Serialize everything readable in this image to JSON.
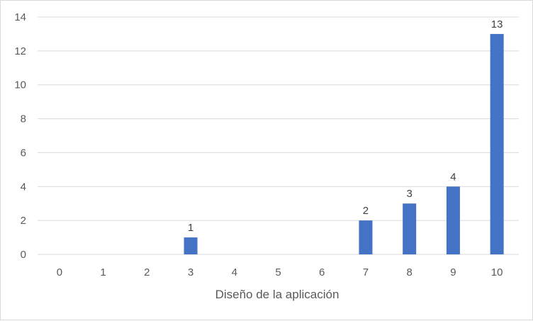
{
  "chart_data": {
    "type": "bar",
    "xlabel": "Diseño de la aplicación",
    "ylabel": "",
    "categories": [
      "0",
      "1",
      "2",
      "3",
      "4",
      "5",
      "6",
      "7",
      "8",
      "9",
      "10"
    ],
    "values": [
      0,
      0,
      0,
      1,
      0,
      0,
      0,
      2,
      3,
      4,
      13
    ],
    "data_labels": [
      "",
      "",
      "",
      "1",
      "",
      "",
      "",
      "2",
      "3",
      "4",
      "13"
    ],
    "ylim": [
      0,
      14
    ],
    "yticks": [
      "0",
      "2",
      "4",
      "6",
      "8",
      "10",
      "12",
      "14"
    ],
    "grid": true,
    "legend": "none",
    "bar_color": "#4472c4",
    "grid_color": "#d9d9d9"
  }
}
